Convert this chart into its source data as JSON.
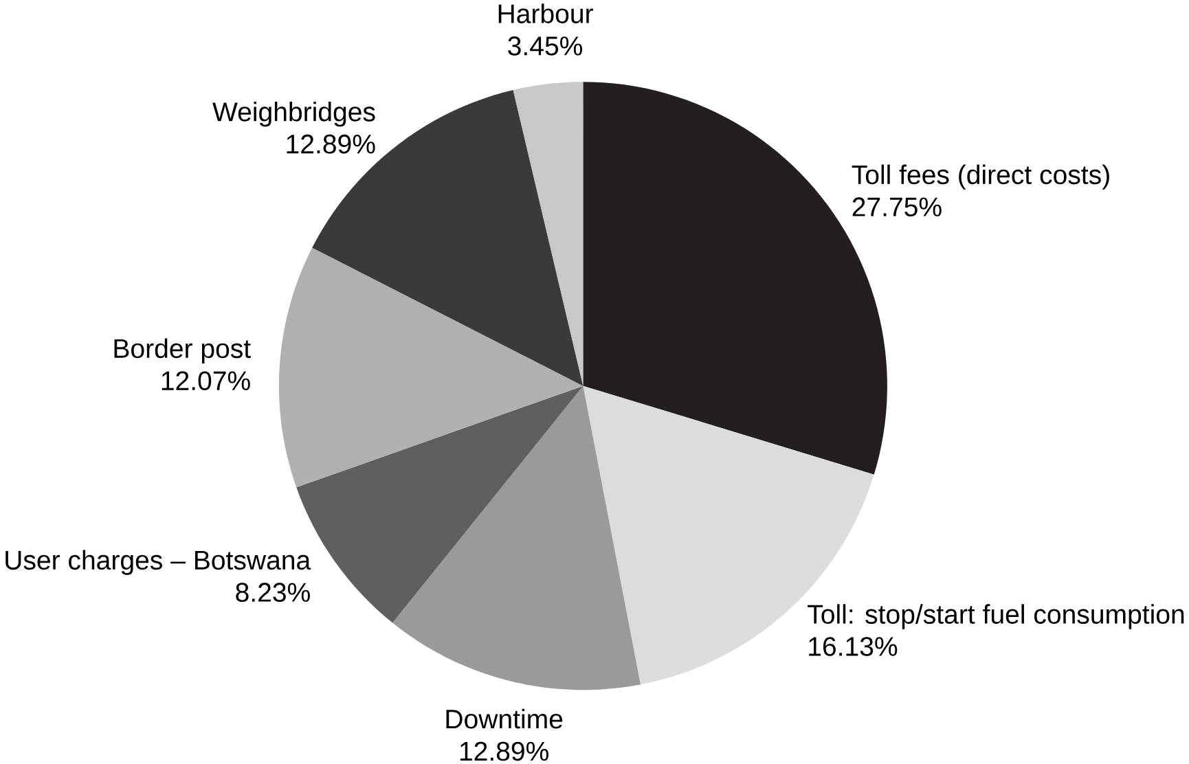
{
  "chart_data": {
    "type": "pie",
    "categories": [
      "Toll fees (direct costs)",
      "Toll: stop/start fuel consumption",
      "Downtime",
      "User charges – Botswana",
      "Border post",
      "Weighbridges",
      "Harbour"
    ],
    "values": [
      27.75,
      16.13,
      12.89,
      8.23,
      12.07,
      12.89,
      3.45
    ],
    "value_labels": [
      "27.75%",
      "16.13%",
      "12.89%",
      "8.23%",
      "12.07%",
      "12.89%",
      "3.45%"
    ],
    "colors": [
      "#231f20",
      "#dcdcdc",
      "#9a9a9a",
      "#5f5f5f",
      "#b0b0b0",
      "#3a3a3a",
      "#c8c8c8"
    ]
  }
}
